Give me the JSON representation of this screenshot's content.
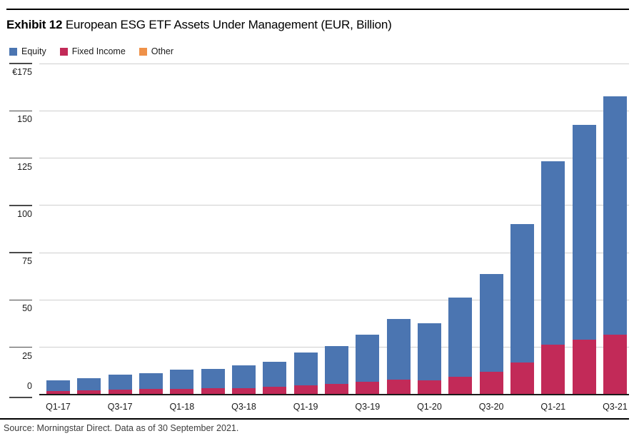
{
  "header": {
    "exhibit_label": "Exhibit 12",
    "title": "European ESG ETF Assets Under Management (EUR, Billion)"
  },
  "legend": [
    {
      "label": "Equity",
      "color": "#4b75b1"
    },
    {
      "label": "Fixed Income",
      "color": "#c22a58"
    },
    {
      "label": "Other",
      "color": "#ef9149"
    }
  ],
  "source_note": "Source: Morningstar Direct. Data as of 30 September 2021.",
  "colors": {
    "equity": "#4b75b1",
    "fixed_income": "#c22a58",
    "other": "#ef9149",
    "gridline": "#cfcfcf",
    "axis": "#1a1a1a",
    "tick": "#4a4a4a",
    "text": "#1a1a1a",
    "source_text": "#3c3c3c"
  },
  "chart_data": {
    "type": "bar",
    "stacked": true,
    "title": "European ESG ETF Assets Under Management (EUR, Billion)",
    "unit": "EUR billion",
    "categories": [
      "Q1-17",
      "Q2-17",
      "Q3-17",
      "Q4-17",
      "Q1-18",
      "Q2-18",
      "Q3-18",
      "Q4-18",
      "Q1-19",
      "Q2-19",
      "Q3-19",
      "Q4-19",
      "Q1-20",
      "Q2-20",
      "Q3-20",
      "Q4-20",
      "Q1-21",
      "Q2-21",
      "Q3-21"
    ],
    "x_axis_labels_shown": [
      "Q1-17",
      "Q3-17",
      "Q1-18",
      "Q3-18",
      "Q1-19",
      "Q3-19",
      "Q1-20",
      "Q3-20",
      "Q1-21",
      "Q3-21"
    ],
    "series": [
      {
        "name": "Equity",
        "color": "#4b75b1",
        "values": [
          5.6,
          6.5,
          7.8,
          8.6,
          10.0,
          10.4,
          12.1,
          13.0,
          17.1,
          19.8,
          24.9,
          32.1,
          30.5,
          41.7,
          51.6,
          73.4,
          97.0,
          113.6,
          125.9
        ]
      },
      {
        "name": "Fixed Income",
        "color": "#c22a58",
        "values": [
          1.6,
          1.9,
          2.3,
          2.5,
          2.8,
          2.9,
          3.0,
          3.9,
          4.7,
          5.4,
          6.4,
          7.4,
          7.0,
          9.2,
          11.7,
          16.5,
          26.0,
          28.5,
          31.2
        ]
      },
      {
        "name": "Other",
        "color": "#ef9149",
        "values": [
          0.1,
          0.1,
          0.1,
          0.1,
          0.1,
          0.1,
          0.2,
          0.2,
          0.2,
          0.2,
          0.2,
          0.3,
          0.3,
          0.3,
          0.4,
          0.4,
          0.5,
          0.5,
          0.5
        ]
      }
    ],
    "totals": [
      7.3,
      8.5,
      10.2,
      11.2,
      12.9,
      13.4,
      15.3,
      17.1,
      22.0,
      25.4,
      31.5,
      39.8,
      37.8,
      51.2,
      63.7,
      90.3,
      123.5,
      142.6,
      157.6
    ],
    "xlabel": "",
    "ylabel": "",
    "ylim": [
      0,
      175
    ],
    "yticks": [
      0,
      25,
      50,
      75,
      100,
      125,
      150,
      175
    ],
    "ytick_labels": [
      "0",
      "25",
      "50",
      "75",
      "100",
      "125",
      "150",
      "€175"
    ],
    "grid": "horizontal",
    "legend_position": "top-left"
  }
}
